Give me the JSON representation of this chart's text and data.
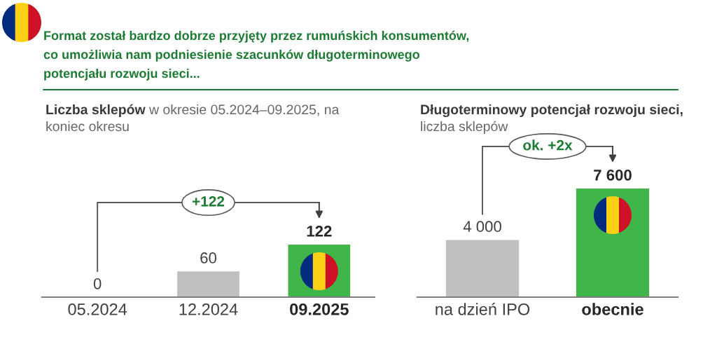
{
  "chart_data": [
    {
      "type": "other",
      "title": "Format został bardzo dobrze przyjęty przez rumuńskich konsumentów, co umożliwia nam podniesienie szacunków długoterminowego potencjału rozwoju sieci..."
    },
    {
      "type": "bar",
      "title": "Liczba sklepów",
      "subtitle": "w okresie 05.2024–09.2025, na koniec okresu",
      "categories": [
        "05.2024",
        "12.2024",
        "09.2025"
      ],
      "values": [
        0,
        60,
        122
      ],
      "colors": [
        "#bfbfbf",
        "#bfbfbf",
        "#3fb54a"
      ],
      "data_labels": true,
      "annotations": [
        "+122"
      ]
    },
    {
      "type": "bar",
      "title": "Długoterminowy potencjał rozwoju sieci,",
      "subtitle": "liczba sklepów",
      "categories": [
        "na dzień IPO",
        "obecnie"
      ],
      "values": [
        4000,
        7600
      ],
      "colors": [
        "#bfbfbf",
        "#3fb54a"
      ],
      "value_labels": [
        "4 000",
        "7 600"
      ],
      "annotations": [
        "ok. +2x"
      ]
    }
  ]
}
